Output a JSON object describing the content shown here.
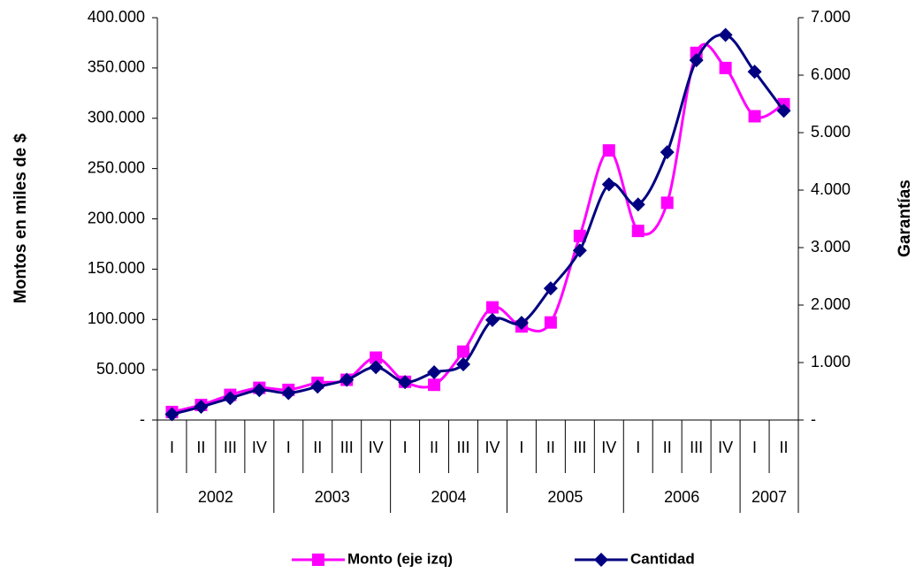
{
  "chart_data": {
    "type": "line",
    "ylabel": "Montos en miles de $",
    "y2label": "Garantías",
    "categories": [
      "I",
      "II",
      "III",
      "IV",
      "I",
      "II",
      "III",
      "IV",
      "I",
      "II",
      "III",
      "IV",
      "I",
      "II",
      "III",
      "IV",
      "I",
      "II",
      "III",
      "IV",
      "I",
      "II"
    ],
    "groups": [
      {
        "label": "2002",
        "span": 4
      },
      {
        "label": "2003",
        "span": 4
      },
      {
        "label": "2004",
        "span": 4
      },
      {
        "label": "2005",
        "span": 4
      },
      {
        "label": "2006",
        "span": 4
      },
      {
        "label": "2007",
        "span": 2
      }
    ],
    "series": [
      {
        "name": "Monto (eje izq)",
        "color": "#ff00ff",
        "marker": "square",
        "values": [
          8000,
          15000,
          25000,
          32000,
          30000,
          37000,
          40000,
          62000,
          38000,
          35000,
          68000,
          112000,
          93000,
          97000,
          183000,
          268000,
          188000,
          216000,
          365000,
          350000,
          302000,
          314000
        ]
      },
      {
        "name": "Cantidad",
        "color": "#000080",
        "marker": "diamond",
        "axis": "y2",
        "values": [
          100,
          230,
          380,
          520,
          470,
          580,
          700,
          920,
          660,
          830,
          970,
          1740,
          1690,
          2290,
          2950,
          4100,
          3750,
          4660,
          6260,
          6700,
          6060,
          5380
        ]
      }
    ],
    "ylim": [
      0,
      400000
    ],
    "yticks": [
      {
        "value": 0,
        "label": "-"
      },
      {
        "value": 50000,
        "label": "50.000"
      },
      {
        "value": 100000,
        "label": "100.000"
      },
      {
        "value": 150000,
        "label": "150.000"
      },
      {
        "value": 200000,
        "label": "200.000"
      },
      {
        "value": 250000,
        "label": "250.000"
      },
      {
        "value": 300000,
        "label": "300.000"
      },
      {
        "value": 350000,
        "label": "350.000"
      },
      {
        "value": 400000,
        "label": "400.000"
      }
    ],
    "y2lim": [
      0,
      7000
    ],
    "y2ticks": [
      {
        "value": 0,
        "label": "-"
      },
      {
        "value": 1000,
        "label": "1.000"
      },
      {
        "value": 2000,
        "label": "2.000"
      },
      {
        "value": 3000,
        "label": "3.000"
      },
      {
        "value": 4000,
        "label": "4.000"
      },
      {
        "value": 5000,
        "label": "5.000"
      },
      {
        "value": 6000,
        "label": "6.000"
      },
      {
        "value": 7000,
        "label": "7.000"
      }
    ],
    "grid": false,
    "legend": "bottom"
  }
}
